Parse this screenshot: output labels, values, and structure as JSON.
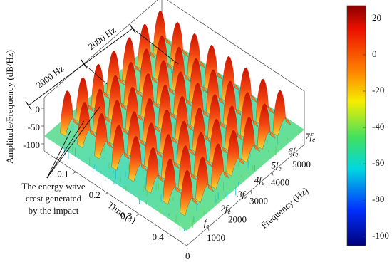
{
  "chart_data": {
    "type": "surface3d",
    "zlabel": "Amplitude/Frequency (dB/Hz)",
    "xlabel": "Time (s)",
    "ylabel": "Frequency (Hz)",
    "xlim": [
      0,
      0.45
    ],
    "xticks": [
      0.1,
      0.2,
      0.3,
      0.4
    ],
    "ylim": [
      0,
      5500
    ],
    "yticks": [
      0,
      1000,
      2000,
      3000,
      4000,
      5000
    ],
    "zlim": [
      -120,
      30
    ],
    "zticks": [
      0,
      -50,
      -100
    ],
    "clim": [
      -105,
      27
    ],
    "cticks": [
      20,
      0,
      -20,
      -40,
      -60,
      -80,
      -100
    ],
    "spacing_labels": [
      "2000 Hz",
      "2000 Hz"
    ],
    "harmonic_labels": [
      "f",
      "2f",
      "3f",
      "4f",
      "5f",
      "6f",
      "7f"
    ],
    "harmonic_subscript": "e",
    "annotation": [
      "The energy wave",
      "crest generated",
      "by the impact"
    ]
  }
}
